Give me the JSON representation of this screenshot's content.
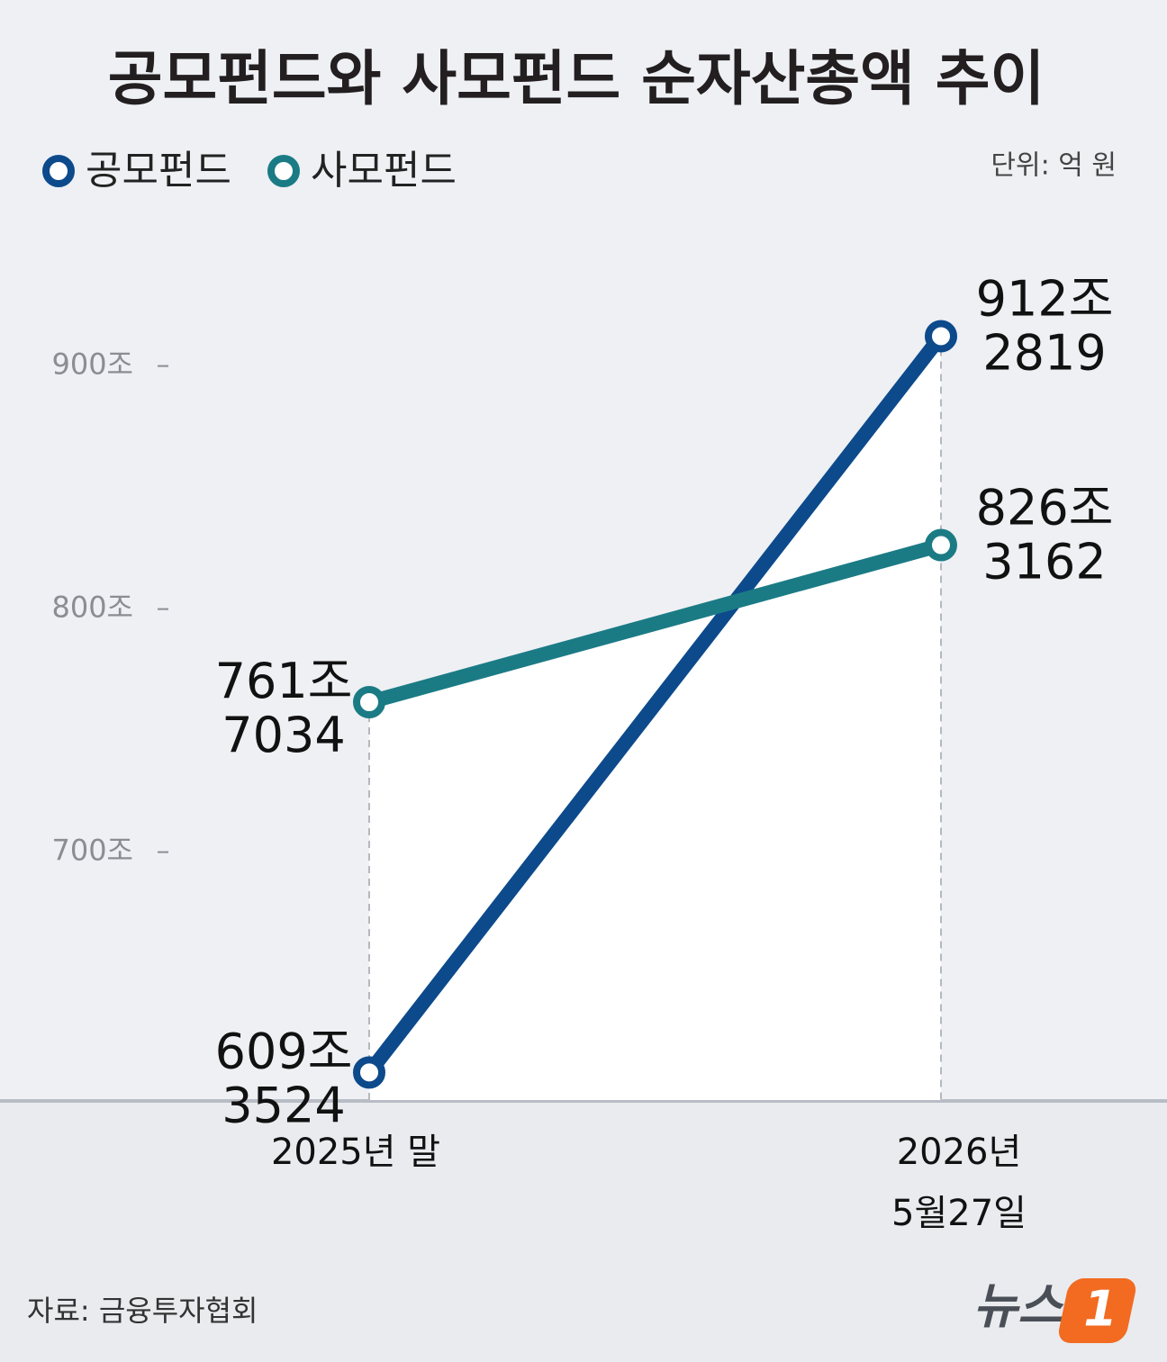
{
  "chart_data": {
    "type": "line",
    "title": "공모펀드와 사모펀드 순자산총액 추이",
    "unit": "단위: 억 원",
    "source": "자료: 금융투자협회",
    "brand": "뉴스",
    "brand_mark": "1",
    "categories": [
      "2025년 말",
      "2026년\n5월27일"
    ],
    "series": [
      {
        "name": "공모펀드",
        "color": "#0c4a8b",
        "values": [
          609.3524,
          912.2819
        ],
        "value_labels": [
          "609조\n3524",
          "912조\n2819"
        ]
      },
      {
        "name": "사모펀드",
        "color": "#1b7b85",
        "values": [
          761.7034,
          826.3162
        ],
        "value_labels": [
          "761조\n7034",
          "826조\n3162"
        ]
      }
    ],
    "ylim": [
      598,
      958
    ],
    "yticks": [
      {
        "value": 700,
        "label": "700조"
      },
      {
        "value": 800,
        "label": "800조"
      },
      {
        "value": 900,
        "label": "900조"
      }
    ]
  }
}
